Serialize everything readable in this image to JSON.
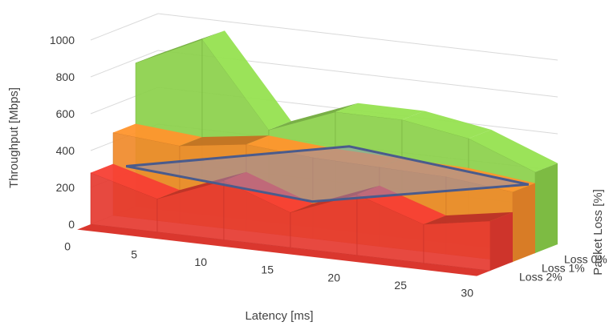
{
  "chart_data": {
    "type": "area",
    "view": "3d-surface",
    "x": [
      0,
      5,
      10,
      15,
      20,
      25,
      30
    ],
    "x_tick_labels": [
      "0",
      "5",
      "10",
      "15",
      "20",
      "25",
      "30"
    ],
    "xlabel": "Latency [ms]",
    "ylabel": "Throughput [Mbps]",
    "zlabel": "Packet Loss [%]",
    "y_tick_labels": [
      "0",
      "200",
      "400",
      "600",
      "800",
      "1000"
    ],
    "ylim": [
      0,
      1000
    ],
    "series": [
      {
        "name": "Loss 0%",
        "color": "#8bd04a",
        "values": [
          780,
          950,
          500,
          640,
          640,
          580,
          440
        ]
      },
      {
        "name": "Loss 1%",
        "color": "#f08a2a",
        "values": [
          450,
          420,
          470,
          440,
          430,
          420,
          380
        ]
      },
      {
        "name": "Loss 2%",
        "color": "#e53a30",
        "values": [
          280,
          180,
          320,
          190,
          330,
          210,
          270
        ]
      }
    ],
    "highlight": {
      "shape": "plane",
      "color": "#4a5b8c",
      "approx_throughput": 350
    },
    "grid": true
  }
}
